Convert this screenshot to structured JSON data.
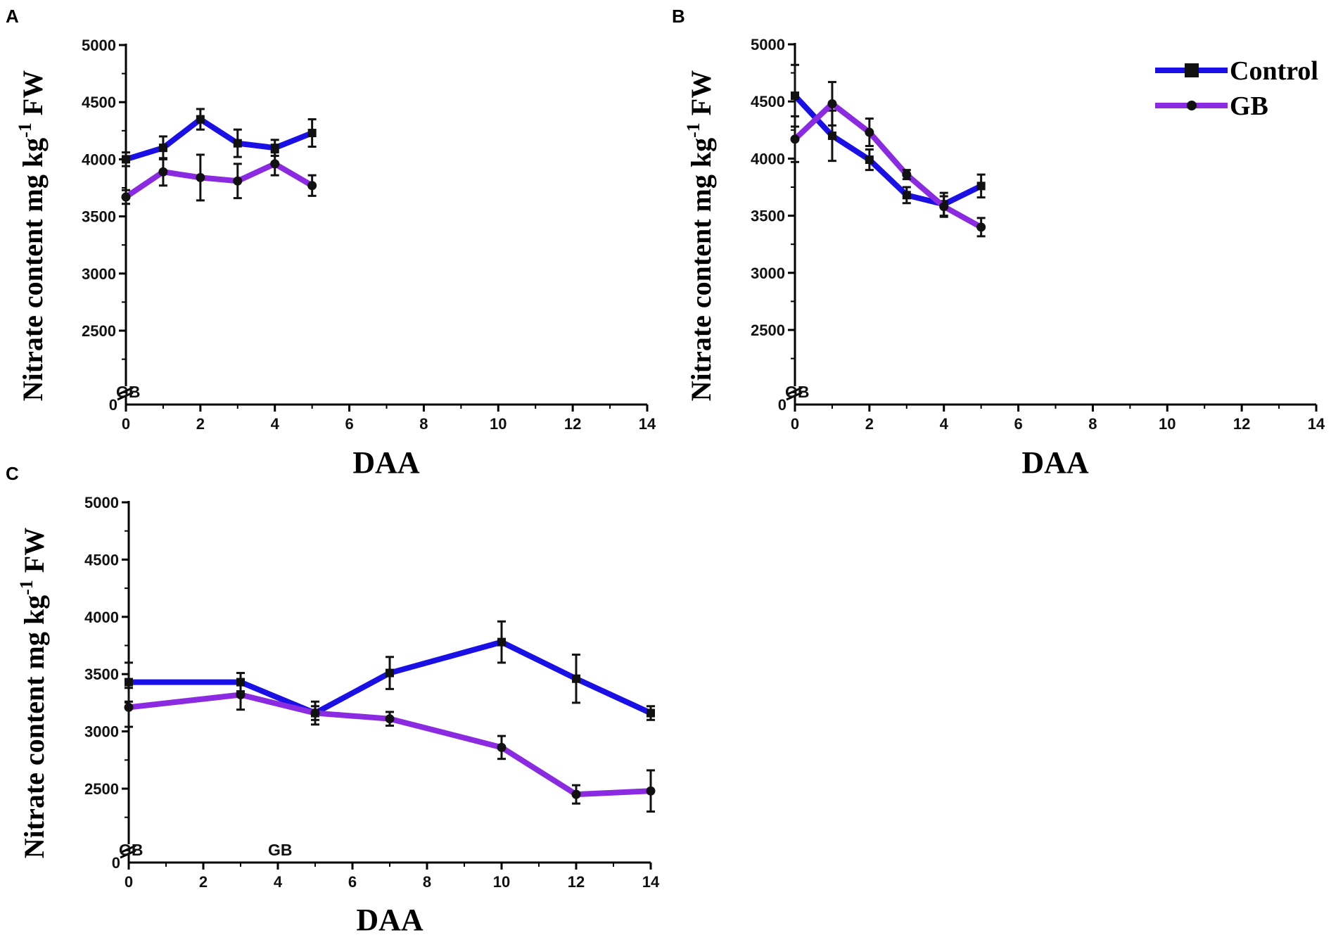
{
  "chart_data": [
    {
      "panel": "A",
      "type": "line",
      "title": "",
      "xlabel": "DAA",
      "ylabel": "Nitrate content mg kg-1 FW",
      "xlim": [
        -0.7,
        14
      ],
      "xticks": [
        0,
        2,
        4,
        6,
        8,
        10,
        12,
        14
      ],
      "yticks": [
        2500,
        3000,
        3500,
        4000,
        4500,
        5000
      ],
      "ylim": [
        2000,
        5000
      ],
      "y_break_label": "0",
      "annotations": [
        {
          "text": "GB",
          "x": 0
        }
      ],
      "series": [
        {
          "name": "Control",
          "x": [
            0,
            1,
            2,
            3,
            4,
            5
          ],
          "values": [
            4000,
            4100,
            4350,
            4140,
            4100,
            4230
          ],
          "errors": [
            60,
            100,
            90,
            120,
            70,
            120
          ]
        },
        {
          "name": "GB",
          "x": [
            0,
            1,
            2,
            3,
            4,
            5
          ],
          "values": [
            3670,
            3890,
            3840,
            3810,
            3960,
            3770
          ],
          "errors": [
            60,
            120,
            200,
            150,
            100,
            90
          ]
        }
      ]
    },
    {
      "panel": "B",
      "type": "line",
      "title": "",
      "xlabel": "DAA",
      "ylabel": "Nitrate content mg kg-1 FW",
      "xlim": [
        -0.7,
        14
      ],
      "xticks": [
        0,
        2,
        4,
        6,
        8,
        10,
        12,
        14
      ],
      "yticks": [
        2500,
        3000,
        3500,
        4000,
        4500,
        5000
      ],
      "ylim": [
        2000,
        5000
      ],
      "y_break_label": "0",
      "annotations": [
        {
          "text": "GB",
          "x": 0
        }
      ],
      "series": [
        {
          "name": "Control",
          "x": [
            0,
            1,
            2,
            3,
            4,
            5
          ],
          "values": [
            4550,
            4200,
            3990,
            3680,
            3600,
            3760
          ],
          "errors": [
            270,
            220,
            90,
            70,
            100,
            100
          ]
        },
        {
          "name": "GB",
          "x": [
            0,
            1,
            2,
            3,
            4,
            5
          ],
          "values": [
            4170,
            4480,
            4230,
            3860,
            3580,
            3400
          ],
          "errors": [
            200,
            190,
            120,
            40,
            90,
            80
          ]
        }
      ]
    },
    {
      "panel": "C",
      "type": "line",
      "title": "",
      "xlabel": "DAA",
      "ylabel": "Nitrate content mg kg-1 FW",
      "xlim": [
        -0.7,
        14
      ],
      "xticks": [
        0,
        2,
        4,
        6,
        8,
        10,
        12,
        14
      ],
      "yticks": [
        2500,
        3000,
        3500,
        4000,
        4500,
        5000
      ],
      "ylim": [
        2000,
        5000
      ],
      "y_break_label": "0",
      "annotations": [
        {
          "text": "GB",
          "x": 0
        },
        {
          "text": "GB",
          "x": 4
        }
      ],
      "series": [
        {
          "name": "Control",
          "x": [
            0,
            3,
            5,
            7,
            10,
            12,
            14
          ],
          "values": [
            3430,
            3430,
            3160,
            3510,
            3780,
            3460,
            3160
          ],
          "errors": [
            170,
            80,
            60,
            140,
            180,
            210,
            60
          ]
        },
        {
          "name": "GB",
          "x": [
            0,
            3,
            5,
            7,
            10,
            12,
            14
          ],
          "values": [
            3210,
            3320,
            3160,
            3110,
            2860,
            2450,
            2480
          ],
          "errors": [
            170,
            130,
            100,
            60,
            100,
            80,
            180
          ]
        }
      ]
    }
  ],
  "legend": {
    "position": "top-right of panel B",
    "entries": [
      {
        "label": "Control",
        "marker": "square",
        "color": "#1a10e6"
      },
      {
        "label": "GB",
        "marker": "circle",
        "color": "#8a2be2"
      }
    ]
  },
  "ylabel_parts": {
    "main": "Nitrate content mg kg",
    "superscript": "-1",
    "suffix": " FW"
  },
  "colors": {
    "control": "#1a10e6",
    "gb": "#8a2be2",
    "error_bar": "#111111",
    "axis": "#000000"
  }
}
